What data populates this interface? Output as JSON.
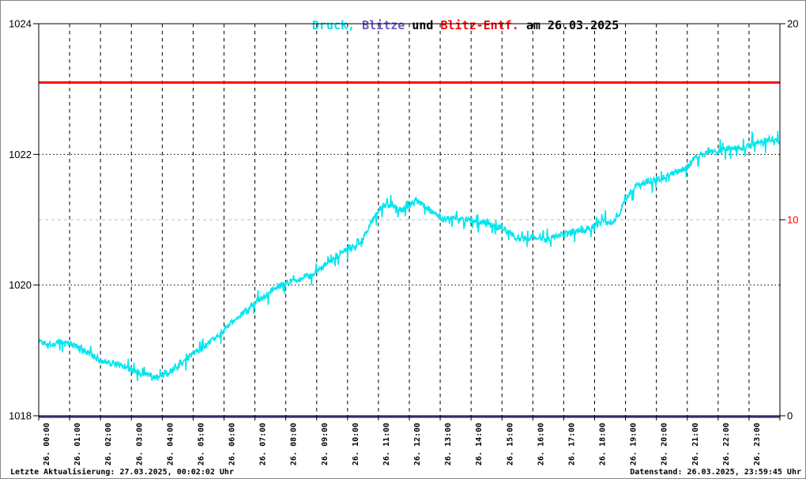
{
  "window": {
    "background": "#ffffff",
    "frame_border_color": "#888888"
  },
  "title": {
    "parts": [
      {
        "text": "Druck,",
        "color": "#00E5EE"
      },
      {
        "text": " Blitze",
        "color": "#6A5ACD"
      },
      {
        "text": " und ",
        "color": "#000000"
      },
      {
        "text": "Blitz-Entf.",
        "color": "#FF0000"
      },
      {
        "text": " am 26.03.2025",
        "color": "#000000"
      }
    ]
  },
  "footer": {
    "last_update": "Letzte Aktualisierung: 27.03.2025, 00:02:02 Uhr",
    "data_state": "Datenstand: 26.03.2025, 23:59:45 Uhr"
  },
  "chart_data": {
    "type": "line",
    "title": "Druck, Blitze und Blitz-Entf. am 26.03.2025",
    "x_axis": {
      "hours": 24,
      "gridlines": "black dashed vertical line every hour",
      "labels": [
        "26. 00:00",
        "26. 01:00",
        "26. 02:00",
        "26. 03:00",
        "26. 04:00",
        "26. 05:00",
        "26. 06:00",
        "26. 07:00",
        "26. 08:00",
        "26. 09:00",
        "26. 10:00",
        "26. 11:00",
        "26. 12:00",
        "26. 13:00",
        "26. 14:00",
        "26. 15:00",
        "26. 16:00",
        "26. 17:00",
        "26. 18:00",
        "26. 19:00",
        "26. 20:00",
        "26. 21:00",
        "26. 22:00",
        "26. 23:00"
      ]
    },
    "y_left": {
      "range": [
        1018,
        1024
      ],
      "tick_labels": [
        "1018",
        "1020",
        "1022",
        "1024"
      ],
      "tick_values": [
        1018,
        1020,
        1022,
        1024
      ],
      "dotted_gridlines_at": [
        1020,
        1022
      ],
      "label_color": "#000000"
    },
    "y_right": {
      "range": [
        0,
        20
      ],
      "ticks": [
        {
          "label": "0",
          "value": 0,
          "color": "#000000"
        },
        {
          "label": "10",
          "value": 10,
          "color": "#FF0000"
        },
        {
          "label": "20",
          "value": 20,
          "color": "#000000"
        }
      ],
      "gray_dashed_gridline_at": 10
    },
    "series": [
      {
        "name": "Druck",
        "axis": "left",
        "unit": "hPa",
        "color": "#00E5EE",
        "sample_interval_min": 15,
        "noise_amplitude_hpa": 0.05,
        "noise_seed": 1337,
        "values": [
          1019.15,
          1019.12,
          1019.1,
          1019.13,
          1019.1,
          1019.05,
          1018.98,
          1018.92,
          1018.85,
          1018.82,
          1018.8,
          1018.76,
          1018.7,
          1018.66,
          1018.62,
          1018.6,
          1018.6,
          1018.68,
          1018.75,
          1018.85,
          1018.95,
          1019.02,
          1019.1,
          1019.2,
          1019.32,
          1019.42,
          1019.52,
          1019.62,
          1019.72,
          1019.82,
          1019.92,
          1019.98,
          1020.02,
          1020.08,
          1020.1,
          1020.14,
          1020.2,
          1020.3,
          1020.38,
          1020.48,
          1020.55,
          1020.62,
          1020.72,
          1020.95,
          1021.15,
          1021.25,
          1021.2,
          1021.15,
          1021.22,
          1021.28,
          1021.2,
          1021.12,
          1021.02,
          1021.02,
          1021.05,
          1021.0,
          1021.0,
          1020.95,
          1020.95,
          1020.9,
          1020.88,
          1020.8,
          1020.72,
          1020.7,
          1020.74,
          1020.7,
          1020.7,
          1020.74,
          1020.78,
          1020.8,
          1020.84,
          1020.84,
          1020.9,
          1021.0,
          1020.95,
          1021.05,
          1021.3,
          1021.48,
          1021.55,
          1021.6,
          1021.6,
          1021.65,
          1021.7,
          1021.75,
          1021.8,
          1021.95,
          1022.0,
          1022.05,
          1022.05,
          1022.08,
          1022.1,
          1022.1,
          1022.14,
          1022.18,
          1022.2,
          1022.24,
          1022.2
        ]
      },
      {
        "name": "Blitze",
        "axis": "right",
        "color": "#483D8B",
        "constant_value": 0
      },
      {
        "name": "Blitz-Entf.",
        "axis": "right",
        "color": "#FF0000",
        "constant_value": 17
      }
    ]
  }
}
